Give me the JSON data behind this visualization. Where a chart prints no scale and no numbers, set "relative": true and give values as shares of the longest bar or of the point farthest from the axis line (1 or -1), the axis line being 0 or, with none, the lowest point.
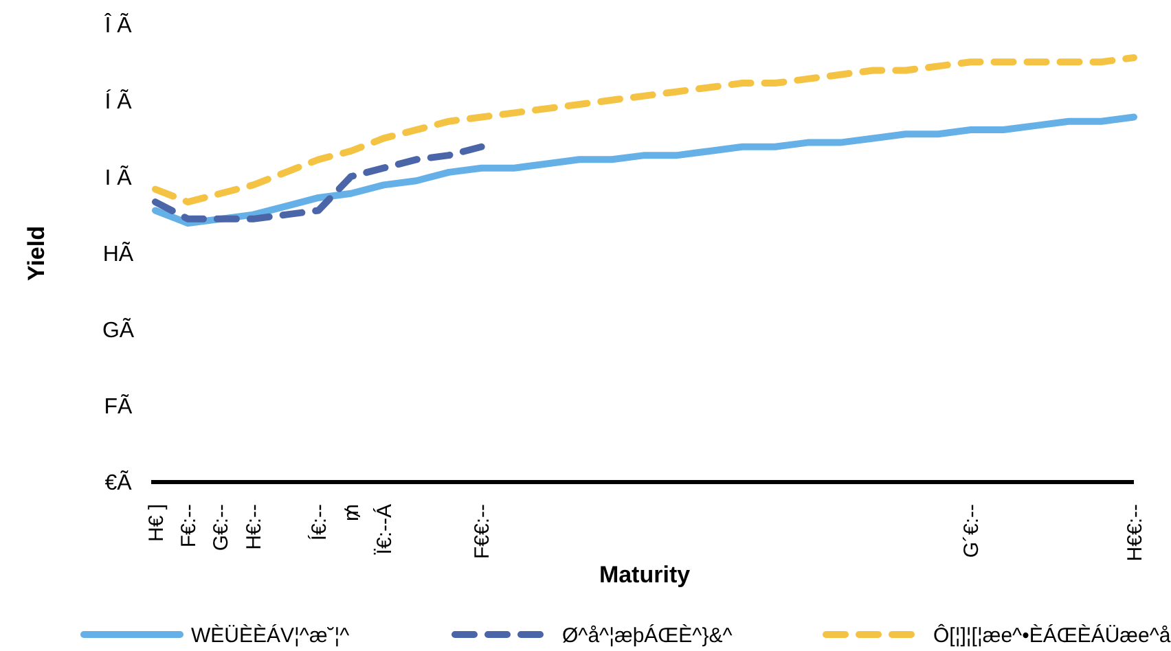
{
  "chart_data": {
    "type": "line",
    "xlabel": "Maturity",
    "ylabel": "Yield",
    "relative": true,
    "categories": [
      "H€ ]",
      "F€:--",
      "G€:--",
      "H€:--",
      null,
      "Í€:--",
      "₥",
      "Ï€:--Á",
      null,
      null,
      "F€€:--",
      null,
      null,
      null,
      null,
      null,
      null,
      null,
      null,
      null,
      null,
      null,
      null,
      null,
      null,
      "G´€:--",
      null,
      null,
      null,
      null,
      "H€€:--"
    ],
    "annotations": [
      "€Ã",
      "FÃ",
      "GÃ",
      "HÃ",
      "I Ã",
      "Í Ã",
      "Î Ã"
    ],
    "grid": false,
    "legend": "bottom",
    "marker": "none",
    "series": [
      {
        "name": "WÈÜÈÈÁV¦^æ˘¦^",
        "color": "#66b0e8",
        "line_style": "solid",
        "values": [
          0.64,
          0.61,
          0.62,
          0.63,
          0.65,
          0.67,
          0.68,
          0.7,
          0.71,
          0.73,
          0.74,
          0.74,
          0.75,
          0.76,
          0.76,
          0.77,
          0.77,
          0.78,
          0.79,
          0.79,
          0.8,
          0.8,
          0.81,
          0.82,
          0.82,
          0.83,
          0.83,
          0.84,
          0.85,
          0.85,
          0.86
        ]
      },
      {
        "name": "Ø^å^¦æþÁŒÈ^}&^",
        "color": "#4a65a8",
        "line_style": "dashed",
        "values": [
          0.66,
          0.62,
          0.62,
          0.62,
          0.63,
          0.64,
          0.72,
          0.74,
          0.76,
          0.77,
          0.79,
          null,
          null,
          null,
          null,
          null,
          null,
          null,
          null,
          null,
          null,
          null,
          null,
          null,
          null,
          null,
          null,
          null,
          null,
          null,
          null
        ]
      },
      {
        "name": "Ô[¦]¦[¦æe^•ÈÁŒÈÁÜæe^å",
        "color": "#f5c343",
        "line_style": "dashed",
        "values": [
          0.69,
          0.66,
          0.68,
          0.7,
          0.73,
          0.76,
          0.78,
          0.81,
          0.83,
          0.85,
          0.86,
          0.87,
          0.88,
          0.89,
          0.9,
          0.91,
          0.92,
          0.93,
          0.94,
          0.94,
          0.95,
          0.96,
          0.97,
          0.97,
          0.98,
          0.99,
          0.99,
          0.99,
          0.99,
          0.99,
          1.0
        ]
      }
    ]
  }
}
